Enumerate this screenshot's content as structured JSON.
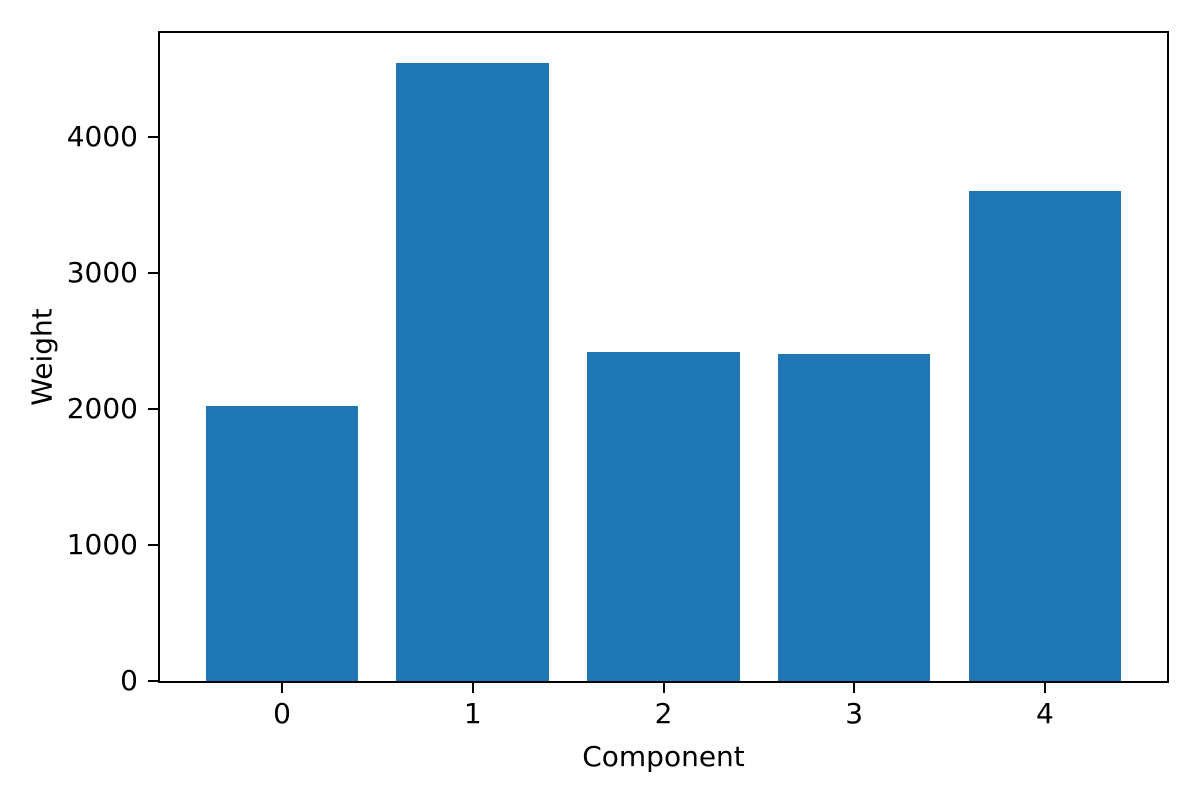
{
  "chart_data": {
    "type": "bar",
    "title": "",
    "xlabel": "Component",
    "ylabel": "Weight",
    "categories": [
      "0",
      "1",
      "2",
      "3",
      "4"
    ],
    "values": [
      2020,
      4540,
      2420,
      2400,
      3600
    ],
    "yticks": [
      0,
      1000,
      2000,
      3000,
      4000
    ],
    "xlim": [
      -0.64,
      4.64
    ],
    "ylim": [
      0,
      4762
    ],
    "bar_width": 0.8,
    "bar_color": "#1f77b4",
    "axis_color": "#000000",
    "background": "#ffffff",
    "grid": false,
    "legend": null
  }
}
